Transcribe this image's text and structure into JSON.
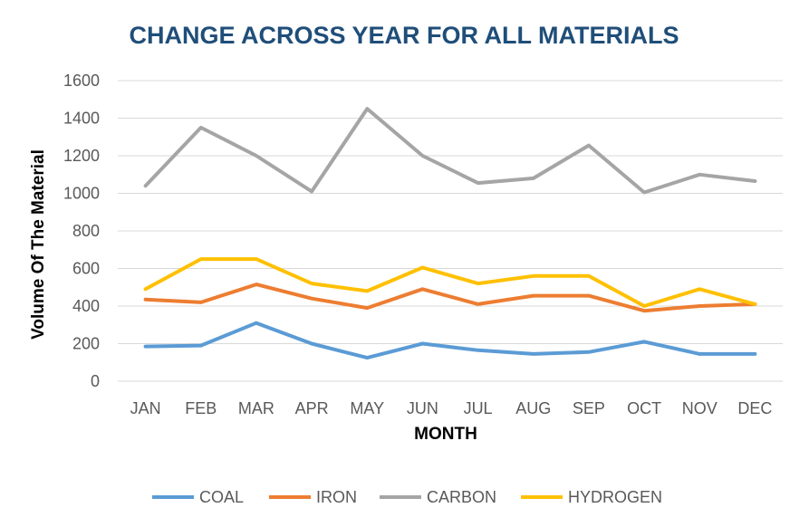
{
  "chart_data": {
    "type": "line",
    "title": "CHANGE ACROSS YEAR FOR ALL MATERIALS",
    "xlabel": "MONTH",
    "ylabel": "Volume Of The Material",
    "categories": [
      "JAN",
      "FEB",
      "MAR",
      "APR",
      "MAY",
      "JUN",
      "JUL",
      "AUG",
      "SEP",
      "OCT",
      "NOV",
      "DEC"
    ],
    "ylim": [
      0,
      1600
    ],
    "yticks": [
      0,
      200,
      400,
      600,
      800,
      1000,
      1200,
      1400,
      1600
    ],
    "grid": true,
    "legend_position": "bottom",
    "series": [
      {
        "name": "COAL",
        "color": "#5b9bd5",
        "values": [
          185,
          190,
          310,
          200,
          125,
          200,
          165,
          145,
          155,
          210,
          145,
          145
        ]
      },
      {
        "name": "IRON",
        "color": "#ed7d31",
        "values": [
          435,
          420,
          515,
          440,
          390,
          490,
          410,
          455,
          455,
          375,
          400,
          410
        ]
      },
      {
        "name": "CARBON",
        "color": "#a5a5a5",
        "values": [
          1040,
          1350,
          1200,
          1010,
          1450,
          1200,
          1055,
          1080,
          1255,
          1005,
          1100,
          1065
        ]
      },
      {
        "name": "HYDROGEN",
        "color": "#ffc000",
        "values": [
          490,
          650,
          650,
          520,
          480,
          605,
          520,
          560,
          560,
          400,
          490,
          410
        ]
      }
    ]
  }
}
